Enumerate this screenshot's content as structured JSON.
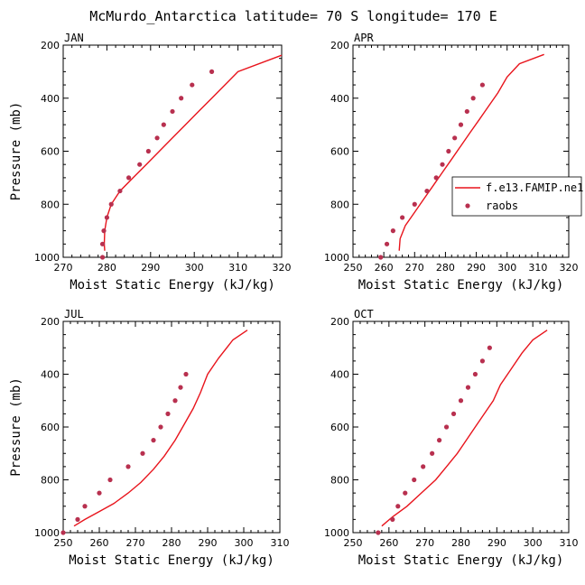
{
  "title": "McMurdo_Antarctica  latitude= 70 S longitude= 170 E",
  "colors": {
    "line": "#e8141c",
    "dots": "#b8304f",
    "frame": "#000000"
  },
  "legend": {
    "line_label": "f.e13.FAMIP.ne1",
    "dots_label": "raobs"
  },
  "chart_data": [
    {
      "panel": "JAN",
      "type": "line",
      "xlabel": "Moist Static Energy (kJ/kg)",
      "ylabel": "Pressure (mb)",
      "xlim": [
        270,
        320
      ],
      "ylim": [
        1000,
        200
      ],
      "xticks": [
        270,
        280,
        290,
        300,
        310,
        320
      ],
      "yticks": [
        200,
        400,
        600,
        800,
        1000
      ],
      "series": [
        {
          "name": "f.e13.FAMIP.ne1",
          "kind": "line",
          "x": [
            279.5,
            279.4,
            279.5,
            280,
            281,
            283,
            286,
            289,
            292,
            295,
            298,
            301,
            304,
            310,
            320
          ],
          "y": [
            975,
            950,
            900,
            850,
            800,
            750,
            700,
            650,
            600,
            550,
            500,
            450,
            400,
            300,
            238
          ]
        },
        {
          "name": "raobs",
          "kind": "scatter",
          "x": [
            279,
            279,
            279.3,
            280,
            281,
            283,
            285,
            287.5,
            289.5,
            291.5,
            293,
            295,
            297,
            299.5,
            304
          ],
          "y": [
            1000,
            950,
            900,
            850,
            800,
            750,
            700,
            650,
            600,
            550,
            500,
            450,
            400,
            350,
            300
          ]
        }
      ]
    },
    {
      "panel": "APR",
      "type": "line",
      "xlabel": "Moist Static Energy (kJ/kg)",
      "ylabel": "",
      "xlim": [
        250,
        320
      ],
      "ylim": [
        1000,
        200
      ],
      "xticks": [
        250,
        260,
        270,
        280,
        290,
        300,
        310,
        320
      ],
      "yticks": [
        200,
        400,
        600,
        800,
        1000
      ],
      "series": [
        {
          "name": "f.e13.FAMIP.ne1",
          "kind": "line",
          "x": [
            265,
            265.3,
            267,
            270,
            273,
            276,
            279,
            282,
            285,
            288,
            291,
            294,
            297,
            300,
            304,
            312
          ],
          "y": [
            975,
            930,
            880,
            830,
            780,
            730,
            680,
            630,
            580,
            530,
            480,
            430,
            380,
            320,
            270,
            235
          ]
        },
        {
          "name": "raobs",
          "kind": "scatter",
          "x": [
            259,
            261,
            263,
            266,
            270,
            274,
            277,
            279,
            281,
            283,
            285,
            287,
            289,
            292
          ],
          "y": [
            1000,
            950,
            900,
            850,
            800,
            750,
            700,
            650,
            600,
            550,
            500,
            450,
            400,
            350
          ]
        }
      ]
    },
    {
      "panel": "JUL",
      "type": "line",
      "xlabel": "Moist Static Energy (kJ/kg)",
      "ylabel": "Pressure (mb)",
      "xlim": [
        250,
        310
      ],
      "ylim": [
        1000,
        200
      ],
      "xticks": [
        250,
        260,
        270,
        280,
        290,
        300,
        310
      ],
      "yticks": [
        200,
        400,
        600,
        800,
        1000
      ],
      "series": [
        {
          "name": "f.e13.FAMIP.ne1",
          "kind": "line",
          "x": [
            253,
            256,
            260,
            264,
            268,
            271.5,
            275,
            278,
            281,
            283.5,
            286,
            288,
            290,
            293,
            297,
            301
          ],
          "y": [
            975,
            950,
            920,
            890,
            850,
            810,
            760,
            710,
            650,
            590,
            530,
            470,
            400,
            340,
            270,
            233
          ]
        },
        {
          "name": "raobs",
          "kind": "scatter",
          "x": [
            250,
            254,
            256,
            260,
            263,
            268,
            272,
            275,
            277,
            279,
            281,
            282.5,
            284
          ],
          "y": [
            1000,
            950,
            900,
            850,
            800,
            750,
            700,
            650,
            600,
            550,
            500,
            450,
            400
          ]
        }
      ]
    },
    {
      "panel": "OCT",
      "type": "line",
      "xlabel": "Moist Static Energy (kJ/kg)",
      "ylabel": "",
      "xlim": [
        250,
        310
      ],
      "ylim": [
        1000,
        200
      ],
      "xticks": [
        250,
        260,
        270,
        280,
        290,
        300,
        310
      ],
      "yticks": [
        200,
        400,
        600,
        800,
        1000
      ],
      "series": [
        {
          "name": "f.e13.FAMIP.ne1",
          "kind": "line",
          "x": [
            258,
            261,
            265,
            269,
            273,
            276,
            279,
            281.5,
            284,
            286.5,
            289,
            291,
            294,
            297,
            300,
            304
          ],
          "y": [
            975,
            940,
            900,
            850,
            800,
            750,
            700,
            650,
            600,
            550,
            500,
            440,
            380,
            320,
            270,
            233
          ]
        },
        {
          "name": "raobs",
          "kind": "scatter",
          "x": [
            257,
            261,
            262.5,
            264.5,
            267,
            269.5,
            272,
            274,
            276,
            278,
            280,
            282,
            284,
            286,
            288
          ],
          "y": [
            1000,
            950,
            900,
            850,
            800,
            750,
            700,
            650,
            600,
            550,
            500,
            450,
            400,
            350,
            300
          ]
        }
      ]
    }
  ]
}
